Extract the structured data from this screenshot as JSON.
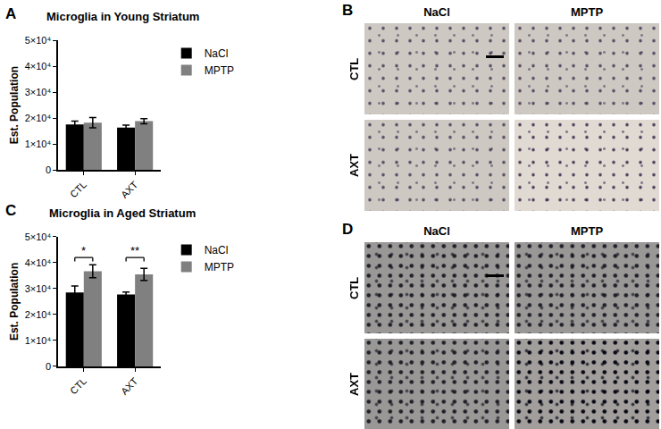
{
  "chart_data": [
    {
      "type": "bar",
      "panel_label": "A",
      "title": "Microglia in Young Striatum",
      "y_label": "Est. Population",
      "categories": [
        "CTL",
        "AXT"
      ],
      "series": [
        {
          "name": "NaCl",
          "color": "#000000",
          "values": [
            17500,
            16300
          ],
          "errors": [
            1300,
            1000
          ]
        },
        {
          "name": "MPTP",
          "color": "#808080",
          "values": [
            18200,
            18800
          ],
          "errors": [
            2000,
            1000
          ]
        }
      ],
      "ylim": [
        0,
        50000
      ],
      "yticks": [
        0,
        {
          "value": 10000,
          "label": "1×10⁴"
        },
        {
          "value": 20000,
          "label": "2×10⁴"
        },
        {
          "value": 30000,
          "label": "3×10⁴"
        },
        {
          "value": 40000,
          "label": "4×10⁴"
        },
        {
          "value": 50000,
          "label": "5×10⁴"
        }
      ],
      "grid": false,
      "legend": "top right"
    },
    {
      "type": "bar",
      "panel_label": "C",
      "title": "Microglia in Aged Striatum",
      "y_label": "Est. Population",
      "categories": [
        "CTL",
        "AXT"
      ],
      "series": [
        {
          "name": "NaCl",
          "color": "#000000",
          "values": [
            28500,
            27700
          ],
          "errors": [
            2500,
            1000
          ]
        },
        {
          "name": "MPTP",
          "color": "#808080",
          "values": [
            36700,
            35500
          ],
          "errors": [
            2500,
            2300
          ]
        }
      ],
      "ylim": [
        0,
        50000
      ],
      "yticks": [
        0,
        {
          "value": 10000,
          "label": "1×10⁴"
        },
        {
          "value": 20000,
          "label": "2×10⁴"
        },
        {
          "value": 30000,
          "label": "3×10⁴"
        },
        {
          "value": 40000,
          "label": "4×10⁴"
        },
        {
          "value": 50000,
          "label": "5×10⁴"
        }
      ],
      "grid": false,
      "legend": "top right",
      "annotations": [
        {
          "category": "CTL",
          "text": "*"
        },
        {
          "category": "AXT",
          "text": "**"
        }
      ]
    }
  ],
  "micrographs": [
    {
      "panel_label": "B",
      "columns": [
        "NaCl",
        "MPTP"
      ],
      "rows": [
        "CTL",
        "AXT"
      ]
    },
    {
      "panel_label": "D",
      "columns": [
        "NaCl",
        "MPTP"
      ],
      "rows": [
        "CTL",
        "AXT"
      ]
    }
  ]
}
